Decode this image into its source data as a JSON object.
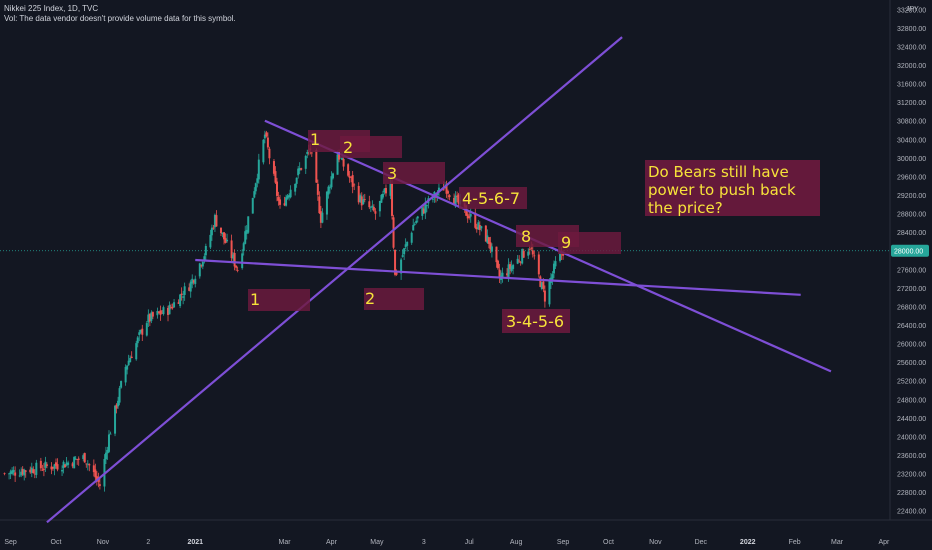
{
  "header": {
    "title": "Nikkei 225 Index, 1D, TVC",
    "volume_note": "Vol: The data vendor doesn't provide volume data for this symbol."
  },
  "price_axis": {
    "currency": "JPY",
    "ticks": [
      "33200.00",
      "32800.00",
      "32400.00",
      "32000.00",
      "31600.00",
      "31200.00",
      "30800.00",
      "30400.00",
      "30000.00",
      "29600.00",
      "29200.00",
      "28800.00",
      "28400.00",
      "27600.00",
      "27200.00",
      "26800.00",
      "26400.00",
      "26000.00",
      "25600.00",
      "25200.00",
      "24800.00",
      "24400.00",
      "24000.00",
      "23600.00",
      "23200.00",
      "22800.00",
      "22400.00"
    ],
    "last_price": "28000.00"
  },
  "time_axis": {
    "ticks": [
      "Sep",
      "Oct",
      "Nov",
      "2",
      "2021",
      "Mar",
      "Apr",
      "May",
      "3",
      "Jul",
      "Aug",
      "Sep",
      "Oct",
      "Nov",
      "Dec",
      "2022",
      "Feb",
      "Mar",
      "Apr"
    ]
  },
  "annotations": {
    "top1": "1",
    "top2": "2",
    "top3": "3",
    "top4": "4-5-6-7",
    "top8": "8",
    "top9": "9",
    "bottom1": "1",
    "bottom2": "2",
    "bottom3": "3-4-5-6",
    "question": [
      "Do Bears still have",
      "power to push back",
      "the price?"
    ]
  },
  "chart_data": {
    "type": "candlestick",
    "title": "Nikkei 225 Index, 1D, TVC",
    "currency": "JPY",
    "ylim": [
      22200,
      33400
    ],
    "x_range": [
      "2020-08-25",
      "2022-04-05"
    ],
    "last_price": 28000,
    "price_path": [
      [
        "2020-08-28",
        23200
      ],
      [
        "2020-09-15",
        23300
      ],
      [
        "2020-10-05",
        23400
      ],
      [
        "2020-10-20",
        23550
      ],
      [
        "2020-10-30",
        22950
      ],
      [
        "2020-11-05",
        24000
      ],
      [
        "2020-11-16",
        25500
      ],
      [
        "2020-11-30",
        26500
      ],
      [
        "2020-12-15",
        26750
      ],
      [
        "2020-12-29",
        27300
      ],
      [
        "2021-01-08",
        28000
      ],
      [
        "2021-01-14",
        28700
      ],
      [
        "2021-01-29",
        27600
      ],
      [
        "2021-02-05",
        28700
      ],
      [
        "2021-02-16",
        30500
      ],
      [
        "2021-02-26",
        28900
      ],
      [
        "2021-03-18",
        30200
      ],
      [
        "2021-03-25",
        28700
      ],
      [
        "2021-04-05",
        30100
      ],
      [
        "2021-04-20",
        29100
      ],
      [
        "2021-04-30",
        28800
      ],
      [
        "2021-05-10",
        29500
      ],
      [
        "2021-05-13",
        27450
      ],
      [
        "2021-05-25",
        28550
      ],
      [
        "2021-06-03",
        29000
      ],
      [
        "2021-06-15",
        29400
      ],
      [
        "2021-06-24",
        29000
      ],
      [
        "2021-07-05",
        28600
      ],
      [
        "2021-07-14",
        28200
      ],
      [
        "2021-07-21",
        27400
      ],
      [
        "2021-08-02",
        27800
      ],
      [
        "2021-08-10",
        28100
      ],
      [
        "2021-08-20",
        27000
      ],
      [
        "2021-08-27",
        27700
      ],
      [
        "2021-09-01",
        28000
      ]
    ],
    "trendlines": [
      {
        "from": [
          "2020-09-25",
          22150
        ],
        "to": [
          "2021-10-10",
          32600
        ]
      },
      {
        "from": [
          "2021-02-16",
          30800
        ],
        "to": [
          "2022-02-25",
          25400
        ]
      },
      {
        "from": [
          "2021-01-01",
          27800
        ],
        "to": [
          "2022-02-05",
          27050
        ]
      }
    ],
    "annotations": [
      {
        "text": "1",
        "date": "2021-03-18",
        "price": 30450
      },
      {
        "text": "2",
        "date": "2021-04-05",
        "price": 30250
      },
      {
        "text": "3",
        "date": "2021-05-03",
        "price": 29750
      },
      {
        "text": "4-5-6-7",
        "date": "2021-06-22",
        "price": 29200
      },
      {
        "text": "8",
        "date": "2021-07-30",
        "price": 28500
      },
      {
        "text": "9",
        "date": "2021-08-23",
        "price": 28350
      },
      {
        "text": "1",
        "date": "2021-02-16",
        "price": 27250
      },
      {
        "text": "2",
        "date": "2021-05-03",
        "price": 27250
      },
      {
        "text": "3-4-5-6",
        "date": "2021-08-10",
        "price": 26800
      },
      {
        "text": "Do Bears still have power to push back the price?",
        "date": "2021-11-25",
        "price": 29500
      }
    ]
  }
}
